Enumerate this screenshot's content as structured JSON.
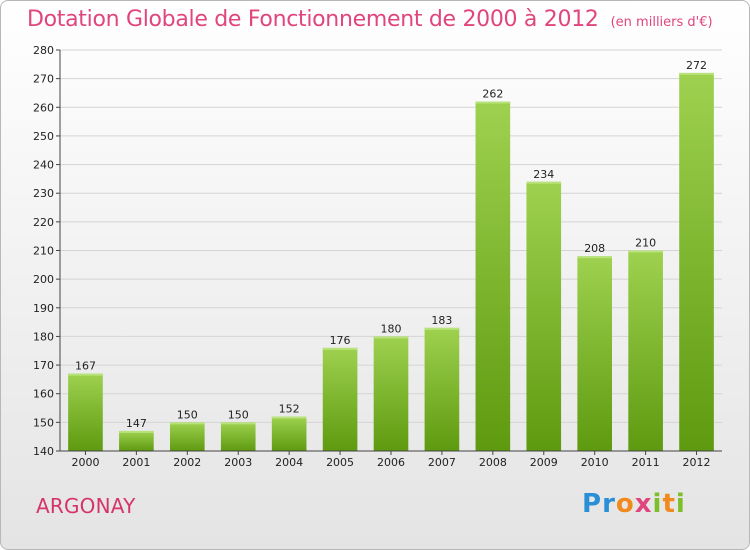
{
  "chart_data": {
    "type": "bar",
    "title": "Dotation Globale de Fonctionnement de 2000 à 2012",
    "subtitle": "(en milliers d'€)",
    "categories": [
      "2000",
      "2001",
      "2002",
      "2003",
      "2004",
      "2005",
      "2006",
      "2007",
      "2008",
      "2009",
      "2010",
      "2011",
      "2012"
    ],
    "values": [
      167,
      147,
      150,
      150,
      152,
      176,
      180,
      183,
      262,
      234,
      208,
      210,
      272
    ],
    "ylim": [
      140,
      280
    ],
    "yticks": [
      140,
      150,
      160,
      170,
      180,
      190,
      200,
      210,
      220,
      230,
      240,
      250,
      260,
      270,
      280
    ],
    "grid": true,
    "xlabel": "",
    "ylabel": "",
    "bar_color_top": "#9ed14f",
    "bar_color_bottom": "#5e9a10"
  },
  "footer": {
    "commune": "ARGONAY",
    "brand": "Proxiti"
  }
}
